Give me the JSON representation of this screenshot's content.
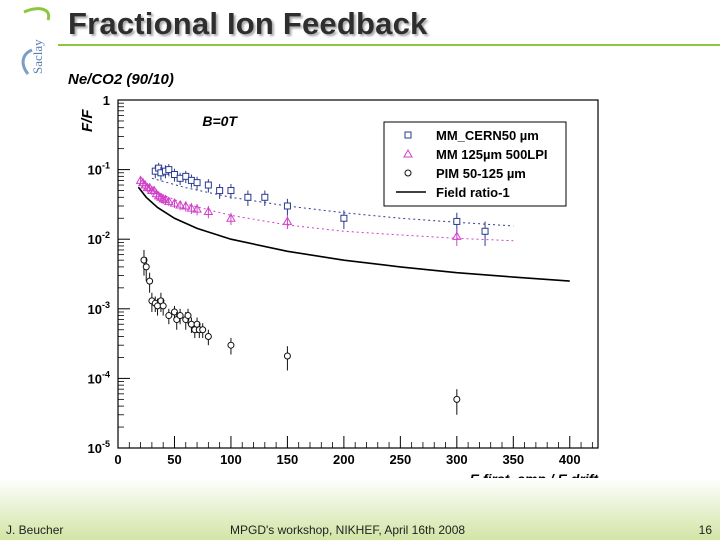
{
  "slide": {
    "title": "Fractional Ion Feedback",
    "logo_text": "Saclay",
    "footer_left": "J. Beucher",
    "footer_center": "MPGD's workshop, NIKHEF,  April 16th 2008",
    "page_number": "16",
    "accent_color": "#8dc63f"
  },
  "chart_data": {
    "type": "scatter",
    "title": "Ne/CO2 (90/10)",
    "annotation": "B=0T",
    "ylabel": "F/F",
    "xlabel": "E first_amp / E drift",
    "xlim": [
      0,
      425
    ],
    "ylim": [
      1e-05,
      1
    ],
    "yscale": "log",
    "xticks": [
      0,
      50,
      100,
      150,
      200,
      250,
      300,
      350,
      400
    ],
    "yticks": [
      {
        "value": 1,
        "label": "1"
      },
      {
        "value": 0.1,
        "label": "10-1"
      },
      {
        "value": 0.01,
        "label": "10-2"
      },
      {
        "value": 0.001,
        "label": "10-3"
      },
      {
        "value": 0.0001,
        "label": "10-4"
      },
      {
        "value": 1e-05,
        "label": "10-5"
      }
    ],
    "legend_position": "top-right",
    "series": [
      {
        "name": "MM_CERN50 µm",
        "marker": "square",
        "color": "#2a3a8f",
        "x": [
          33,
          36,
          38,
          42,
          45,
          50,
          55,
          60,
          65,
          70,
          80,
          90,
          100,
          115,
          130,
          150,
          200,
          300,
          325
        ],
        "y": [
          0.095,
          0.105,
          0.09,
          0.095,
          0.1,
          0.085,
          0.075,
          0.08,
          0.07,
          0.065,
          0.06,
          0.05,
          0.05,
          0.04,
          0.04,
          0.03,
          0.02,
          0.018,
          0.013
        ],
        "err": [
          0.02,
          0.02,
          0.02,
          0.02,
          0.02,
          0.018,
          0.015,
          0.016,
          0.015,
          0.014,
          0.013,
          0.012,
          0.012,
          0.01,
          0.01,
          0.008,
          0.006,
          0.006,
          0.005
        ]
      },
      {
        "name": "MM 125µm 500LPI",
        "marker": "triangle",
        "color": "#d040c8",
        "x": [
          20,
          22,
          24,
          26,
          28,
          30,
          32,
          34,
          36,
          38,
          40,
          42,
          45,
          50,
          55,
          60,
          65,
          70,
          80,
          100,
          150,
          300
        ],
        "y": [
          0.07,
          0.065,
          0.06,
          0.055,
          0.055,
          0.05,
          0.05,
          0.045,
          0.042,
          0.04,
          0.038,
          0.037,
          0.035,
          0.033,
          0.031,
          0.03,
          0.028,
          0.027,
          0.025,
          0.02,
          0.018,
          0.011
        ],
        "err": [
          0.01,
          0.01,
          0.009,
          0.008,
          0.008,
          0.007,
          0.007,
          0.007,
          0.006,
          0.006,
          0.006,
          0.006,
          0.005,
          0.005,
          0.005,
          0.005,
          0.005,
          0.005,
          0.005,
          0.004,
          0.004,
          0.003
        ]
      },
      {
        "name": "PIM 50-125 µm",
        "marker": "open-circle",
        "color": "#111111",
        "x": [
          23,
          25,
          28,
          30,
          33,
          35,
          38,
          40,
          45,
          50,
          52,
          55,
          60,
          62,
          65,
          68,
          70,
          72,
          75,
          80,
          100,
          150,
          300
        ],
        "y": [
          0.005,
          0.004,
          0.0025,
          0.0013,
          0.0012,
          0.0011,
          0.0013,
          0.0011,
          0.0008,
          0.0009,
          0.0007,
          0.0008,
          0.0007,
          0.0008,
          0.0006,
          0.0005,
          0.0006,
          0.0005,
          0.0005,
          0.0004,
          0.0003,
          0.00021,
          5e-05
        ],
        "err": [
          0.002,
          0.0015,
          0.0008,
          0.0004,
          0.0003,
          0.0003,
          0.0004,
          0.0003,
          0.0002,
          0.0002,
          0.0002,
          0.0002,
          0.0002,
          0.0002,
          0.00015,
          0.00012,
          0.00015,
          0.00012,
          0.00012,
          0.0001,
          8e-05,
          8e-05,
          2e-05
        ]
      },
      {
        "name": "Field ratio-1",
        "marker": "line",
        "color": "#000000",
        "x": [
          18,
          25,
          35,
          50,
          70,
          100,
          150,
          200,
          250,
          300,
          350,
          400
        ],
        "y": [
          0.056,
          0.04,
          0.0286,
          0.02,
          0.0143,
          0.01,
          0.0067,
          0.005,
          0.004,
          0.0033,
          0.00286,
          0.0025
        ]
      }
    ],
    "fits": [
      {
        "color": "#2a3a8f",
        "x": [
          30,
          60,
          100,
          150,
          200,
          250,
          300,
          350
        ],
        "y": [
          0.075,
          0.055,
          0.04,
          0.03,
          0.024,
          0.02,
          0.0175,
          0.0155
        ]
      },
      {
        "color": "#d040c8",
        "x": [
          30,
          60,
          100,
          150,
          200,
          250,
          300,
          350
        ],
        "y": [
          0.05,
          0.032,
          0.022,
          0.016,
          0.013,
          0.0115,
          0.0103,
          0.0095
        ]
      }
    ]
  }
}
